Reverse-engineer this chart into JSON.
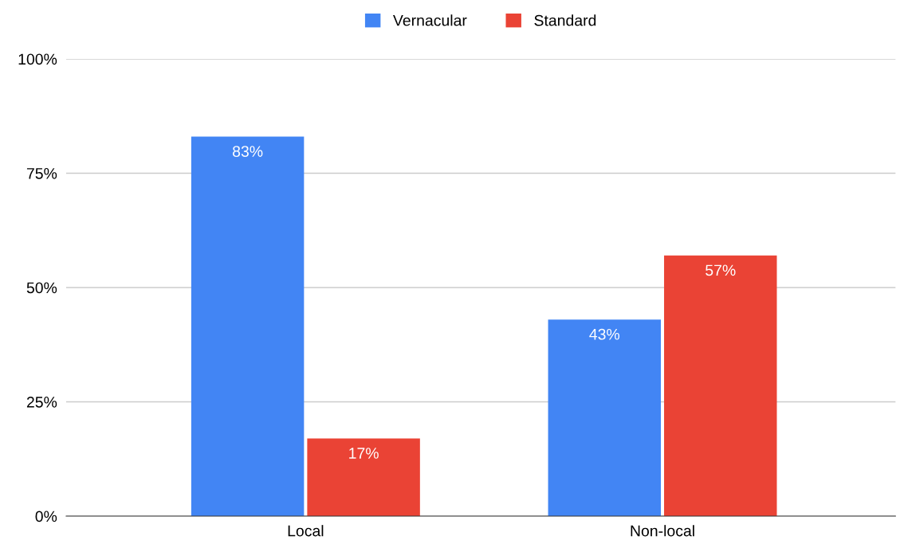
{
  "chart_data": {
    "type": "bar",
    "categories": [
      "Local",
      "Non-local"
    ],
    "series": [
      {
        "name": "Vernacular",
        "color": "#4285f4",
        "values": [
          83,
          43
        ],
        "value_labels": [
          "83%",
          "43%"
        ]
      },
      {
        "name": "Standard",
        "color": "#ea4335",
        "values": [
          17,
          57
        ],
        "value_labels": [
          "17%",
          "57%"
        ]
      }
    ],
    "ylim": [
      0,
      100
    ],
    "yticks": [
      {
        "value": 0,
        "label": "0%"
      },
      {
        "value": 25,
        "label": "25%"
      },
      {
        "value": 50,
        "label": "50%"
      },
      {
        "value": 75,
        "label": "75%"
      },
      {
        "value": 100,
        "label": "100%"
      }
    ],
    "grid": "y",
    "legend": "top"
  }
}
